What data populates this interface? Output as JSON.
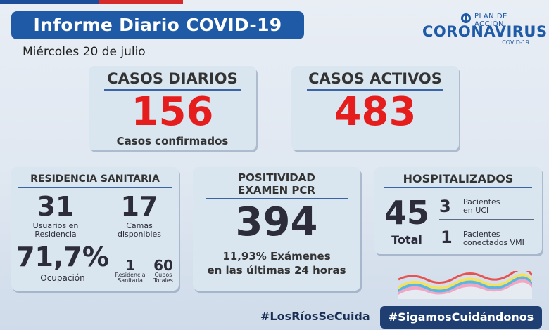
{
  "header": {
    "title": "Informe Diario COVID-19",
    "date": "Miércoles 20 de julio"
  },
  "logo": {
    "top_text": "PLAN DE ACCIÓN",
    "main_text": "CORONAVIRUS",
    "sub_text": "COVID-19",
    "icon": "government-seal-icon"
  },
  "casos_diarios": {
    "title": "CASOS DIARIOS",
    "value": "156",
    "caption": "Casos confirmados"
  },
  "casos_activos": {
    "title": "CASOS ACTIVOS",
    "value": "483"
  },
  "residencia": {
    "title": "RESIDENCIA SANITARIA",
    "usuarios_value": "31",
    "usuarios_label_1": "Usuarios en",
    "usuarios_label_2": "Residencia",
    "camas_value": "17",
    "camas_label_1": "Camas",
    "camas_label_2": "disponibles",
    "ocupacion_value": "71,7%",
    "ocupacion_label": "Ocupación",
    "residencia_value": "1",
    "residencia_label_1": "Residencia",
    "residencia_label_2": "Sanitaria",
    "cupos_value": "60",
    "cupos_label_1": "Cupos",
    "cupos_label_2": "Totales"
  },
  "positividad": {
    "title_1": "POSITIVIDAD",
    "title_2": "EXAMEN PCR",
    "value": "394",
    "line_1": "11,93% Exámenes",
    "line_2": "en las últimas 24 horas"
  },
  "hospitalizados": {
    "title": "HOSPITALIZADOS",
    "total_value": "45",
    "total_label": "Total",
    "uci_value": "3",
    "uci_label_1": "Pacientes",
    "uci_label_2": "en UCI",
    "vmi_value": "1",
    "vmi_label_1": "Pacientes",
    "vmi_label_2": "conectados VMI"
  },
  "footer": {
    "hashtag_1": "#LosRíosSeCuida",
    "hashtag_2": "#SigamosCuidándonos"
  },
  "colors": {
    "primary_blue": "#1f5aa6",
    "accent_red": "#e61d1d",
    "card_bg": "#d9e5ef",
    "footer_navy": "#1f3f73"
  }
}
